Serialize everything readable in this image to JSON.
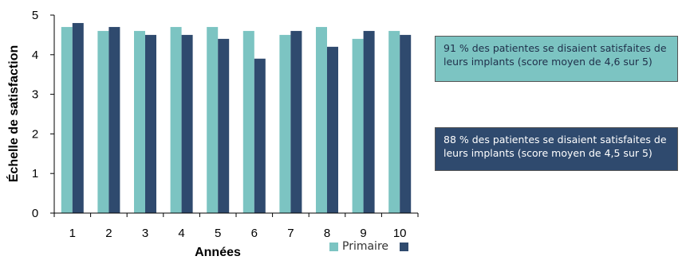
{
  "colors": {
    "primary": "#7cc4c2",
    "secondary": "#2f4a6e",
    "axis": "#000000"
  },
  "chart_data": {
    "type": "bar",
    "xlabel": "Années",
    "ylabel": "Échelle de satisfaction",
    "ylim": [
      0,
      5
    ],
    "yticks": [
      "0",
      "1",
      "2",
      "3",
      "4",
      "5"
    ],
    "categories": [
      "1",
      "2",
      "3",
      "4",
      "5",
      "6",
      "7",
      "8",
      "9",
      "10"
    ],
    "grid": false,
    "legend_position": "bottom",
    "series": [
      {
        "name": "Primaire",
        "color": "#7cc4c2",
        "values": [
          4.7,
          4.6,
          4.6,
          4.7,
          4.7,
          4.6,
          4.5,
          4.7,
          4.4,
          4.6
        ]
      },
      {
        "name": "",
        "color": "#2f4a6e",
        "values": [
          4.8,
          4.7,
          4.5,
          4.5,
          4.4,
          3.9,
          4.6,
          4.2,
          4.6,
          4.5
        ]
      }
    ]
  },
  "callouts": [
    {
      "text": "91 % des patientes se disaient satisfaites de leurs implants (score moyen de 4,6 sur 5)",
      "background": "#7cc4c2"
    },
    {
      "text": "88 % des patientes se disaient satisfaites de leurs implants (score moyen de 4,5 sur 5)",
      "background": "#2f4a6e"
    }
  ]
}
